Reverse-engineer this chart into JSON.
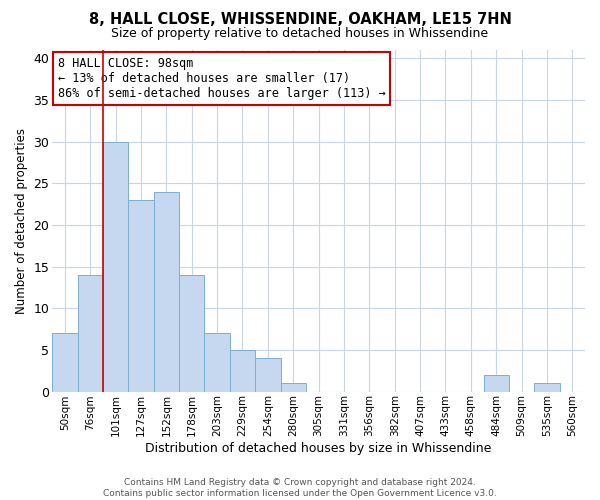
{
  "title": "8, HALL CLOSE, WHISSENDINE, OAKHAM, LE15 7HN",
  "subtitle": "Size of property relative to detached houses in Whissendine",
  "xlabel": "Distribution of detached houses by size in Whissendine",
  "ylabel": "Number of detached properties",
  "footnote": "Contains HM Land Registry data © Crown copyright and database right 2024.\nContains public sector information licensed under the Open Government Licence v3.0.",
  "bin_labels": [
    "50sqm",
    "76sqm",
    "101sqm",
    "127sqm",
    "152sqm",
    "178sqm",
    "203sqm",
    "229sqm",
    "254sqm",
    "280sqm",
    "305sqm",
    "331sqm",
    "356sqm",
    "382sqm",
    "407sqm",
    "433sqm",
    "458sqm",
    "484sqm",
    "509sqm",
    "535sqm",
    "560sqm"
  ],
  "bar_heights": [
    7,
    14,
    30,
    23,
    24,
    14,
    7,
    5,
    4,
    1,
    0,
    0,
    0,
    0,
    0,
    0,
    0,
    2,
    0,
    1,
    0
  ],
  "bar_color": "#c5d8f0",
  "bar_edge_color": "#7bafd4",
  "background_color": "#ffffff",
  "grid_color": "#c8d4e8",
  "annotation_line1": "8 HALL CLOSE: 98sqm",
  "annotation_line2": "← 13% of detached houses are smaller (17)",
  "annotation_line3": "86% of semi-detached houses are larger (113) →",
  "annotation_box_color": "#ffffff",
  "annotation_box_edge_color": "#cc0000",
  "red_line_x": 1.5,
  "ylim": [
    0,
    41
  ],
  "yticks": [
    0,
    5,
    10,
    15,
    20,
    25,
    30,
    35,
    40
  ]
}
